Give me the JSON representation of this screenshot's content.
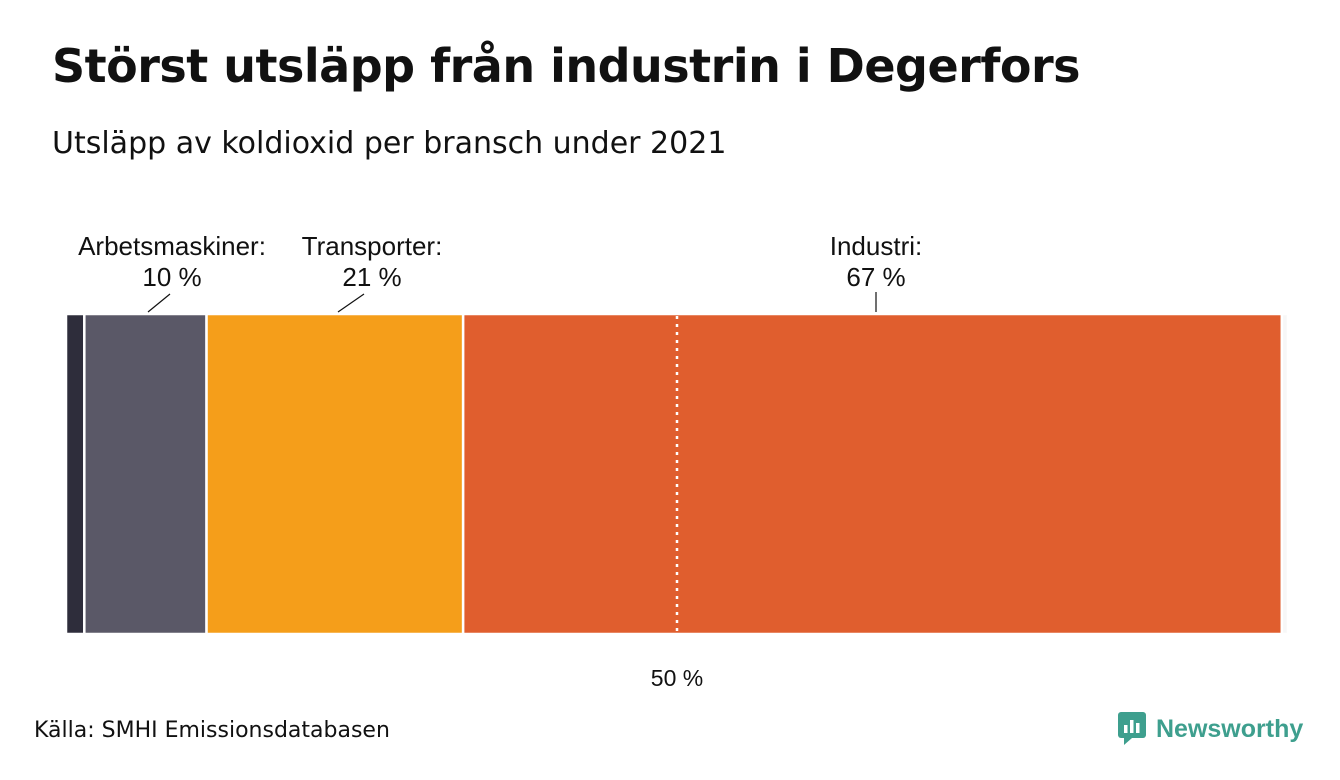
{
  "title": "Störst utsläpp från industrin i Degerfors",
  "subtitle": "Utsläpp av koldioxid per bransch under 2021",
  "source": "Källa: SMHI Emissionsdatabasen",
  "brand": {
    "name": "Newsworthy",
    "icon": "newsworthy-chart-icon",
    "color": "#3e9f8e"
  },
  "chart_data": {
    "type": "bar",
    "orientation": "horizontal-stacked",
    "unit": "%",
    "xlim": [
      0,
      100
    ],
    "series": [
      {
        "value": 1.5,
        "color": "#2e2d3b"
      },
      {
        "name": "Arbetsmaskiner",
        "value": 10,
        "label_name": "Arbetsmaskiner:",
        "label_value": "10 %",
        "color": "#5a5867"
      },
      {
        "name": "Transporter",
        "value": 21,
        "label_name": "Transporter:",
        "label_value": "21 %",
        "color": "#f59e1a"
      },
      {
        "name": "Industri",
        "value": 67,
        "label_name": "Industri:",
        "label_value": "67 %",
        "color": "#e05e2e"
      },
      {
        "value": 0.5,
        "color": "#f7f7f7"
      }
    ],
    "reference_line": {
      "value": 50,
      "label": "50 %"
    }
  }
}
